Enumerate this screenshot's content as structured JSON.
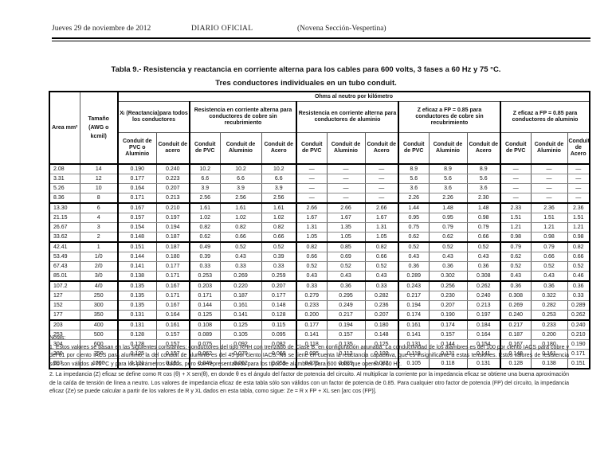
{
  "page_header": {
    "date": "Jueves 29 de noviembre de 2012",
    "publication": "DIARIO OFICIAL",
    "section": "(Novena Sección-Vespertina)"
  },
  "table": {
    "title": "Tabla 9.- Resistencia y reactancia en corriente alterna para los cables para 600 volts, 3 fases a 60 Hz y 75 °C.",
    "subtitle": "Tres conductores individuales en un tubo conduit.",
    "ohms_header": "Ohms al neutro por kilómetro",
    "col_area": "Area mm²",
    "col_size": "Tamaño (AWG o kcmil)",
    "groups": [
      {
        "label": "Xₗ (Reactancia)para todos los conductores",
        "cols": [
          "Conduit de PVC o Aluminio",
          "Conduit de acero"
        ]
      },
      {
        "label": "Resistencia en corriente alterna para conductores de cobre sin recubrimiento",
        "cols": [
          "Conduit de PVC",
          "Conduit de Aluminio",
          "Conduit de Acero"
        ]
      },
      {
        "label": "Resistencia en corriente alterna para conductores de aluminio",
        "cols": [
          "Conduit de PVC",
          "Conduit de Aluminio",
          "Conduit de Acero"
        ]
      },
      {
        "label": "Z eficaz a FP = 0.85 para conductores de cobre sin recubrimiento",
        "cols": [
          "Conduit de PVC",
          "Conduit de Aluminio",
          "Conduit de Acero"
        ]
      },
      {
        "label": "Z eficaz a FP = 0.85 para conductores de aluminio",
        "cols": [
          "Conduit de PVC",
          "Conduit de Aluminio",
          "Conduit de Acero"
        ]
      }
    ],
    "rows": [
      [
        "2.08",
        "14",
        "0.190",
        "0.240",
        "10.2",
        "10.2",
        "10.2",
        "—",
        "—",
        "—",
        "8.9",
        "8.9",
        "8.9",
        "—",
        "—",
        "—"
      ],
      [
        "3.31",
        "12",
        "0.177",
        "0.223",
        "6.6",
        "6.6",
        "6.6",
        "—",
        "—",
        "—",
        "5.6",
        "5.6",
        "5.6",
        "—",
        "—",
        "—"
      ],
      [
        "5.26",
        "10",
        "0.164",
        "0.207",
        "3.9",
        "3.9",
        "3.9",
        "—",
        "—",
        "—",
        "3.6",
        "3.6",
        "3.6",
        "—",
        "—",
        "—"
      ],
      [
        "8.36",
        "8",
        "0.171",
        "0.213",
        "2.56",
        "2.56",
        "2.56",
        "—",
        "—",
        "—",
        "2.26",
        "2.26",
        "2.30",
        "—",
        "—",
        "—"
      ],
      [
        "13.30",
        "6",
        "0.167",
        "0.210",
        "1.61",
        "1.61",
        "1.61",
        "2.66",
        "2.66",
        "2.66",
        "1.44",
        "1.48",
        "1.48",
        "2.33",
        "2.36",
        "2.36"
      ],
      [
        "21.15",
        "4",
        "0.157",
        "0.197",
        "1.02",
        "1.02",
        "1.02",
        "1.67",
        "1.67",
        "1.67",
        "0.95",
        "0.95",
        "0.98",
        "1.51",
        "1.51",
        "1.51"
      ],
      [
        "26.67",
        "3",
        "0.154",
        "0.194",
        "0.82",
        "0.82",
        "0.82",
        "1.31",
        "1.35",
        "1.31",
        "0.75",
        "0.79",
        "0.79",
        "1.21",
        "1.21",
        "1.21"
      ],
      [
        "33.62",
        "2",
        "0.148",
        "0.187",
        "0.62",
        "0.66",
        "0.66",
        "1.05",
        "1.05",
        "1.05",
        "0.62",
        "0.62",
        "0.66",
        "0.98",
        "0.98",
        "0.98"
      ],
      [
        "42.41",
        "1",
        "0.151",
        "0.187",
        "0.49",
        "0.52",
        "0.52",
        "0.82",
        "0.85",
        "0.82",
        "0.52",
        "0.52",
        "0.52",
        "0.79",
        "0.79",
        "0.82"
      ],
      [
        "53.49",
        "1/0",
        "0.144",
        "0.180",
        "0.39",
        "0.43",
        "0.39",
        "0.66",
        "0.69",
        "0.66",
        "0.43",
        "0.43",
        "0.43",
        "0.62",
        "0.66",
        "0.66"
      ],
      [
        "67.43",
        "2/0",
        "0.141",
        "0.177",
        "0.33",
        "0.33",
        "0.33",
        "0.52",
        "0.52",
        "0.52",
        "0.36",
        "0.36",
        "0.36",
        "0.52",
        "0.52",
        "0.52"
      ],
      [
        "85.01",
        "3/0",
        "0.138",
        "0.171",
        "0.253",
        "0.269",
        "0.259",
        "0.43",
        "0.43",
        "0.43",
        "0.289",
        "0.302",
        "0.308",
        "0.43",
        "0.43",
        "0.46"
      ],
      [
        "107.2",
        "4/0",
        "0.135",
        "0.167",
        "0.203",
        "0.220",
        "0.207",
        "0.33",
        "0.36",
        "0.33",
        "0.243",
        "0.256",
        "0.262",
        "0.36",
        "0.36",
        "0.36"
      ],
      [
        "127",
        "250",
        "0.135",
        "0.171",
        "0.171",
        "0.187",
        "0.177",
        "0.279",
        "0.295",
        "0.282",
        "0.217",
        "0.230",
        "0.240",
        "0.308",
        "0.322",
        "0.33"
      ],
      [
        "152",
        "300",
        "0.135",
        "0.167",
        "0.144",
        "0.161",
        "0.148",
        "0.233",
        "0.249",
        "0.236",
        "0.194",
        "0.207",
        "0.213",
        "0.269",
        "0.282",
        "0.289"
      ],
      [
        "177",
        "350",
        "0.131",
        "0.164",
        "0.125",
        "0.141",
        "0.128",
        "0.200",
        "0.217",
        "0.207",
        "0.174",
        "0.190",
        "0.197",
        "0.240",
        "0.253",
        "0.262"
      ],
      [
        "203",
        "400",
        "0.131",
        "0.161",
        "0.108",
        "0.125",
        "0.115",
        "0.177",
        "0.194",
        "0.180",
        "0.161",
        "0.174",
        "0.184",
        "0.217",
        "0.233",
        "0.240"
      ],
      [
        "253",
        "500",
        "0.128",
        "0.157",
        "0.089",
        "0.105",
        "0.095",
        "0.141",
        "0.157",
        "0.148",
        "0.141",
        "0.157",
        "0.164",
        "0.187",
        "0.200",
        "0.210"
      ],
      [
        "304",
        "600",
        "0.128",
        "0.157",
        "0.075",
        "0.092",
        "0.082",
        "0.118",
        "0.135",
        "0.125",
        "0.131",
        "0.144",
        "0.154",
        "0.167",
        "0.180",
        "0.190"
      ],
      [
        "380",
        "750",
        "0.125",
        "0.157",
        "0.062",
        "0.079",
        "0.069",
        "0.095",
        "0.112",
        "0.102",
        "0.118",
        "0.131",
        "0.141",
        "0.148",
        "0.161",
        "0.171"
      ],
      [
        "507",
        "1000",
        "0.121",
        "0.151",
        "0.049",
        "0.062",
        "0.059",
        "0.075",
        "0.089",
        "0.082",
        "0.105",
        "0.118",
        "0.131",
        "0.128",
        "0.138",
        "0.151"
      ]
    ],
    "group_breaks": [
      3,
      7,
      11,
      15
    ]
  },
  "notes": {
    "label": "Notas:",
    "items": [
      "1. Estos valores se basan en las siguientes constantes: conductores del tipo RHH con trenzado de Clase B, en configuración acunada. La conductividad de los alambres es del 100 por ciento IACS para cobre y del 61 por ciento IACS para aluminio; la del conduit de aluminio es del 45 por ciento IACS. No se tiene en cuenta la reactancia capacitiva, que es insignificante a estas tensiones. Estos valores de resistencia sólo son válidos a 75 °C y para los parámetros dados, pero son representativos para los tipos de alambres para 600 volts que operen a 60 Hz.",
      "2. La impedancia (Z) eficaz se define como R cos (θ) + X sen(θ), en donde θ es el ángulo del factor de potencia del circuito. Al multiplicar la corriente por la impedancia eficaz se obtiene una buena aproximación de la caída de tensión de línea a neutro. Los valores de impedancia eficaz de esta tabla sólo son válidos con un factor de potencia de 0.85. Para cualquier otro factor de potencia (FP) del circuito, la impedancia eficaz (Ze) se puede calcular a partir de los valores de R y XL dados en esta tabla, como sigue: Ze = R x FP + XL sen [arc cos (FP)]."
    ]
  }
}
